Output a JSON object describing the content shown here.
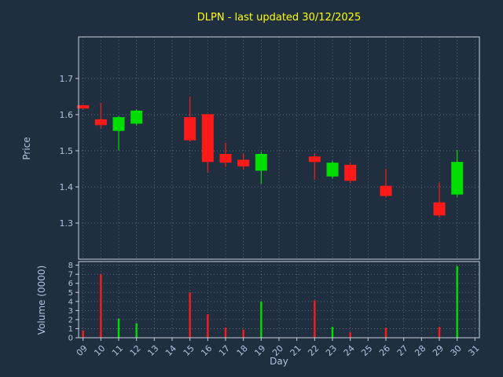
{
  "chart_data": {
    "type": "candlestick",
    "title": "DLPN - last updated 30/12/2025",
    "xlabel": "Day",
    "ylabel": "Price",
    "volume_label": "Volume (0000)",
    "legend": null,
    "grid": true,
    "x_tick_labels": [
      "09",
      "10",
      "11",
      "12",
      "13",
      "14",
      "15",
      "16",
      "17",
      "18",
      "19",
      "20",
      "21",
      "22",
      "23",
      "24",
      "25",
      "26",
      "27",
      "28",
      "29",
      "30",
      "31"
    ],
    "price_ticks": [
      1.3,
      1.4,
      1.5,
      1.6,
      1.7
    ],
    "price_tick_labels": [
      "1.3",
      "1.4",
      "1.5",
      "1.6",
      "1.7"
    ],
    "volume_ticks": [
      0,
      1,
      2,
      3,
      4,
      5,
      6,
      7,
      8
    ],
    "volume_tick_labels": [
      "0",
      "1",
      "2",
      "3",
      "4",
      "5",
      "6",
      "7",
      "8"
    ],
    "xlim": [
      8.75,
      31.25
    ],
    "price_ylim": [
      1.2,
      1.815
    ],
    "volume_ylim": [
      0,
      8.4
    ],
    "colors": {
      "up": "#00dd00",
      "down": "#ff1a1a",
      "background": "#1f2f3f",
      "panel_border": "#c8d0dc",
      "text": "#b4c2de",
      "title": "#ffff00",
      "grid": "#7d8da5"
    },
    "ohlc": [
      {
        "day": 9,
        "open": 1.625,
        "high": 1.627,
        "low": 1.615,
        "close": 1.618,
        "volume": 0.8
      },
      {
        "day": 10,
        "open": 1.586,
        "high": 1.632,
        "low": 1.562,
        "close": 1.572,
        "volume": 7.0
      },
      {
        "day": 11,
        "open": 1.556,
        "high": 1.596,
        "low": 1.502,
        "close": 1.592,
        "volume": 2.1
      },
      {
        "day": 12,
        "open": 1.576,
        "high": 1.615,
        "low": 1.57,
        "close": 1.61,
        "volume": 1.6
      },
      {
        "day": 15,
        "open": 1.592,
        "high": 1.65,
        "low": 1.525,
        "close": 1.53,
        "volume": 5.0
      },
      {
        "day": 16,
        "open": 1.6,
        "high": 1.602,
        "low": 1.44,
        "close": 1.47,
        "volume": 2.6
      },
      {
        "day": 17,
        "open": 1.49,
        "high": 1.522,
        "low": 1.455,
        "close": 1.468,
        "volume": 1.1
      },
      {
        "day": 18,
        "open": 1.474,
        "high": 1.492,
        "low": 1.448,
        "close": 1.458,
        "volume": 0.9
      },
      {
        "day": 19,
        "open": 1.446,
        "high": 1.497,
        "low": 1.408,
        "close": 1.49,
        "volume": 4.0
      },
      {
        "day": 22,
        "open": 1.483,
        "high": 1.492,
        "low": 1.42,
        "close": 1.47,
        "volume": 4.1
      },
      {
        "day": 23,
        "open": 1.43,
        "high": 1.472,
        "low": 1.424,
        "close": 1.466,
        "volume": 1.2
      },
      {
        "day": 24,
        "open": 1.46,
        "high": 1.468,
        "low": 1.41,
        "close": 1.418,
        "volume": 0.6
      },
      {
        "day": 26,
        "open": 1.402,
        "high": 1.45,
        "low": 1.37,
        "close": 1.376,
        "volume": 1.1
      },
      {
        "day": 29,
        "open": 1.356,
        "high": 1.412,
        "low": 1.315,
        "close": 1.322,
        "volume": 1.2
      },
      {
        "day": 30,
        "open": 1.38,
        "high": 1.502,
        "low": 1.372,
        "close": 1.468,
        "volume": 7.9
      }
    ]
  }
}
